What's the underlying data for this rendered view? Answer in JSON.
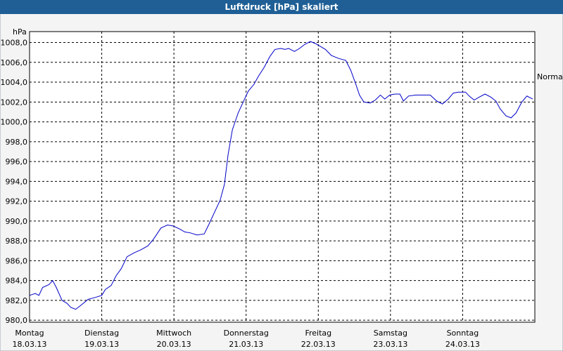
{
  "chart_data": {
    "type": "line",
    "title": "Luftdruck [hPa] skaliert",
    "y_unit": "hPa",
    "annotation": "Normal",
    "grid": true,
    "xlim": [
      0,
      7
    ],
    "ylim": [
      979.8,
      1009.1
    ],
    "xticks": [
      {
        "value": 0,
        "label": "Montag",
        "date": "18.03.13"
      },
      {
        "value": 1,
        "label": "Dienstag",
        "date": "19.03.13"
      },
      {
        "value": 2,
        "label": "Mittwoch",
        "date": "20.03.13"
      },
      {
        "value": 3,
        "label": "Donnerstag",
        "date": "21.03.13"
      },
      {
        "value": 4,
        "label": "Freitag",
        "date": "22.03.13"
      },
      {
        "value": 5,
        "label": "Samstag",
        "date": "23.03.13"
      },
      {
        "value": 6,
        "label": "Sonntag",
        "date": "24.03.13"
      }
    ],
    "yticks": [
      {
        "value": 980,
        "label": "980,0"
      },
      {
        "value": 982,
        "label": "982,0"
      },
      {
        "value": 984,
        "label": "984,0"
      },
      {
        "value": 986,
        "label": "986,0"
      },
      {
        "value": 988,
        "label": "988,0"
      },
      {
        "value": 990,
        "label": "990,0"
      },
      {
        "value": 992,
        "label": "992,0"
      },
      {
        "value": 994,
        "label": "994,0"
      },
      {
        "value": 996,
        "label": "996,0"
      },
      {
        "value": 998,
        "label": "998,0"
      },
      {
        "value": 1000,
        "label": "1000,0"
      },
      {
        "value": 1002,
        "label": "1002,0"
      },
      {
        "value": 1004,
        "label": "1004,0"
      },
      {
        "value": 1006,
        "label": "1006,0"
      },
      {
        "value": 1008,
        "label": "1008,0"
      }
    ],
    "x": [
      0,
      0.08,
      0.13,
      0.18,
      0.27,
      0.32,
      0.37,
      0.45,
      0.52,
      0.57,
      0.64,
      0.71,
      0.81,
      0.91,
      1.0,
      1.05,
      1.13,
      1.2,
      1.27,
      1.35,
      1.45,
      1.54,
      1.64,
      1.72,
      1.82,
      1.91,
      1.99,
      2.08,
      2.15,
      2.23,
      2.32,
      2.42,
      2.48,
      2.57,
      2.64,
      2.7,
      2.75,
      2.81,
      2.89,
      2.96,
      3.03,
      3.11,
      3.17,
      3.25,
      3.33,
      3.4,
      3.48,
      3.54,
      3.59,
      3.67,
      3.74,
      3.81,
      3.89,
      3.96,
      4.03,
      4.1,
      4.18,
      4.28,
      4.38,
      4.45,
      4.52,
      4.57,
      4.63,
      4.72,
      4.79,
      4.86,
      4.92,
      4.99,
      5.06,
      5.13,
      5.18,
      5.25,
      5.35,
      5.45,
      5.55,
      5.64,
      5.72,
      5.8,
      5.87,
      5.94,
      6.04,
      6.09,
      6.16,
      6.23,
      6.31,
      6.39,
      6.46,
      6.52,
      6.6,
      6.67,
      6.74,
      6.82,
      6.89,
      6.97
    ],
    "series": [
      {
        "color": "#0000c8",
        "values": [
          982.5,
          982.7,
          982.5,
          983.3,
          983.6,
          984.0,
          983.3,
          982.0,
          981.7,
          981.3,
          981.1,
          981.5,
          982.1,
          982.3,
          982.5,
          983.1,
          983.5,
          984.5,
          985.2,
          986.4,
          986.8,
          987.1,
          987.5,
          988.2,
          989.3,
          989.6,
          989.5,
          989.2,
          988.9,
          988.8,
          988.6,
          988.7,
          989.6,
          991.0,
          992.1,
          993.7,
          996.7,
          999.2,
          1000.9,
          1002.0,
          1003.1,
          1003.8,
          1004.6,
          1005.5,
          1006.6,
          1007.3,
          1007.4,
          1007.3,
          1007.4,
          1007.1,
          1007.4,
          1007.8,
          1008.1,
          1007.9,
          1007.6,
          1007.3,
          1006.7,
          1006.4,
          1006.2,
          1005.2,
          1003.8,
          1002.7,
          1002.0,
          1001.9,
          1002.2,
          1002.7,
          1002.3,
          1002.7,
          1002.8,
          1002.8,
          1002.1,
          1002.6,
          1002.7,
          1002.7,
          1002.7,
          1002.1,
          1001.8,
          1002.3,
          1002.9,
          1003.0,
          1003.0,
          1002.6,
          1002.2,
          1002.5,
          1002.8,
          1002.5,
          1002.1,
          1001.3,
          1000.6,
          1000.4,
          1000.9,
          1002.0,
          1002.6,
          1002.3
        ]
      }
    ]
  }
}
